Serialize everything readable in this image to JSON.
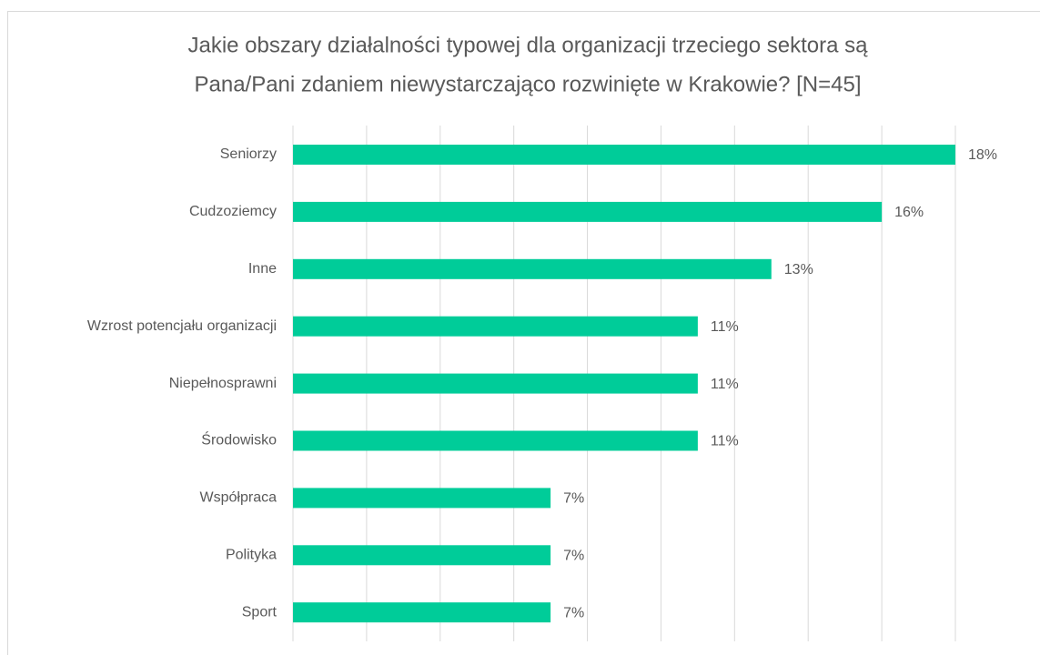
{
  "chart_data": {
    "type": "barh",
    "title": [
      "Jakie obszary działalności typowej dla organizacji trzeciego sektora są",
      "Pana/Pani zdaniem niewystarczająco rozwinięte w Krakowie? [N=45]"
    ],
    "categories": [
      "Seniorzy",
      "Cudzoziemcy",
      "Inne",
      "Wzrost potencjału organizacji",
      "Niepełnosprawni",
      "Środowisko",
      "Współpraca",
      "Polityka",
      "Sport"
    ],
    "values": [
      18,
      16,
      13,
      11,
      11,
      11,
      7,
      7,
      7
    ],
    "value_labels": [
      "18%",
      "16%",
      "13%",
      "11%",
      "11%",
      "11%",
      "7%",
      "7%",
      "7%"
    ],
    "color": "#00cc99",
    "xlim": [
      0,
      18
    ],
    "xticks": [
      0,
      2,
      4,
      6,
      8,
      10,
      12,
      14,
      16,
      18
    ],
    "grid": true
  }
}
